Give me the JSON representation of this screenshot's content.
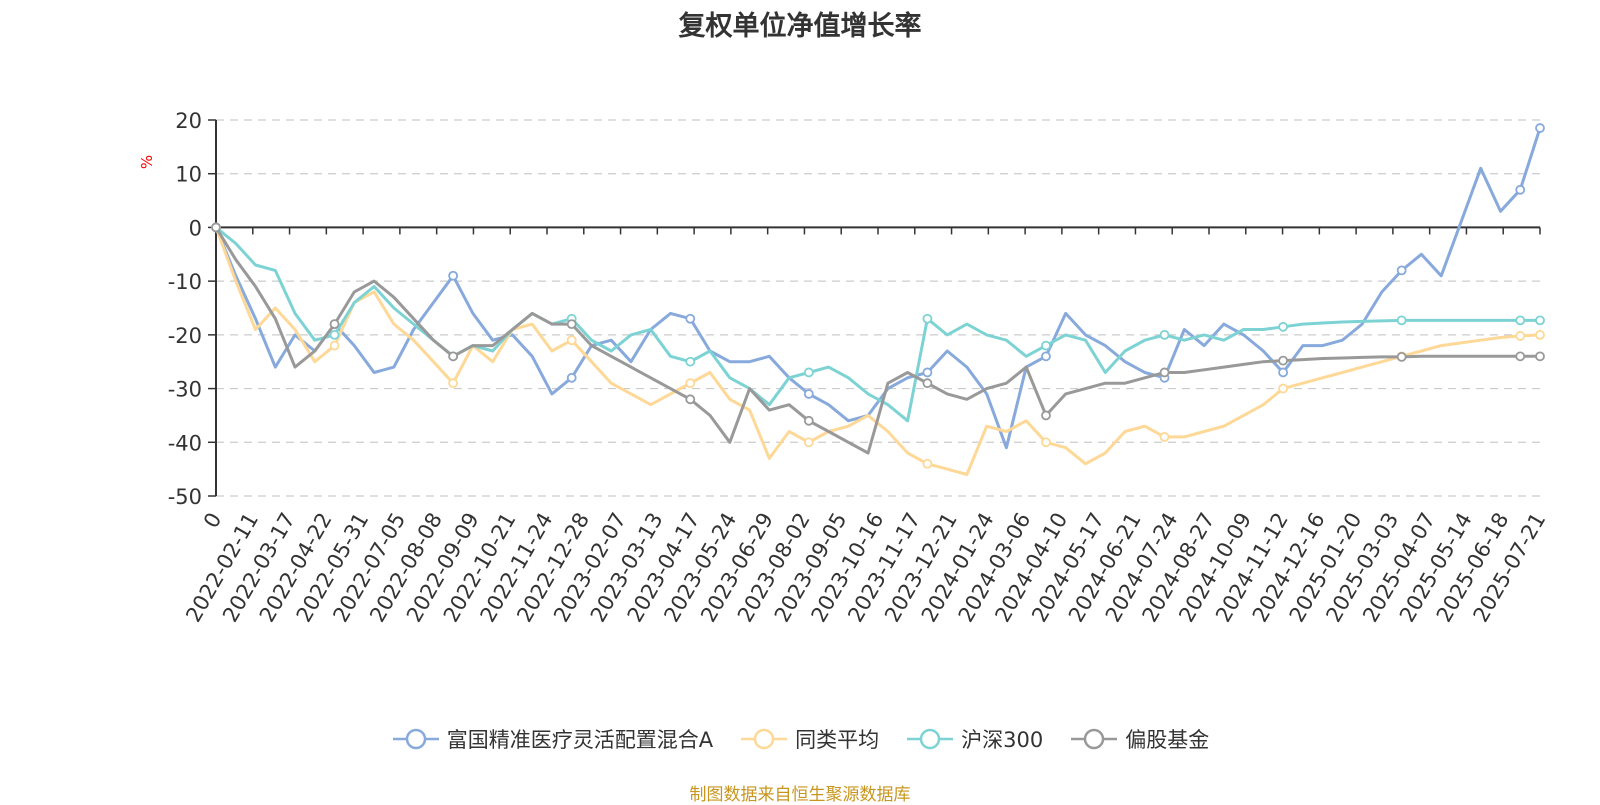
{
  "title": "复权单位净值增长率",
  "source_note": "制图数据来自恒生聚源数据库",
  "chart_data": {
    "type": "line",
    "title": "复权单位净值增长率",
    "ylabel": "%",
    "ylim": [
      -50,
      20
    ],
    "yticks": [
      20,
      10,
      0,
      -10,
      -20,
      -30,
      -40,
      -50
    ],
    "grid": true,
    "legend_position": "bottom",
    "x_tick_labels": [
      "0",
      "2022-02-11",
      "2022-03-17",
      "2022-04-22",
      "2022-05-31",
      "2022-07-05",
      "2022-08-08",
      "2022-09-09",
      "2022-10-21",
      "2022-11-24",
      "2022-12-28",
      "2023-02-07",
      "2023-03-13",
      "2023-04-17",
      "2023-05-24",
      "2023-06-29",
      "2023-08-02",
      "2023-09-05",
      "2023-10-16",
      "2023-11-17",
      "2023-12-21",
      "2024-01-24",
      "2024-03-06",
      "2024-04-10",
      "2024-05-17",
      "2024-06-21",
      "2024-07-24",
      "2024-08-27",
      "2024-10-09",
      "2024-11-12",
      "2024-12-16",
      "2025-01-20",
      "2025-03-03",
      "2025-04-07",
      "2025-05-14",
      "2025-06-18",
      "2025-07-21"
    ],
    "series": [
      {
        "name": "富国精准医疗灵活配置混合A",
        "color": "#87a9dc",
        "values": [
          0,
          -9,
          -17,
          -26,
          -20,
          -23,
          -18,
          -22,
          -27,
          -26,
          -19,
          -14,
          -9,
          -16,
          -21,
          -20,
          -24,
          -31,
          -28,
          -22,
          -21,
          -25,
          -19,
          -16,
          -17,
          -23,
          -25,
          -25,
          -24,
          -28,
          -31,
          -33,
          -36,
          -35,
          -30,
          -28,
          -27,
          -23,
          -26,
          -31,
          -41,
          -26,
          -24,
          -16,
          -20,
          -22,
          -25,
          -27,
          -28,
          -19,
          -22,
          -18,
          -20,
          -23,
          -27,
          -22,
          -22,
          -21,
          -18,
          -12,
          -8,
          -5,
          -9,
          1,
          11,
          3,
          7,
          18.5
        ]
      },
      {
        "name": "同类平均",
        "color": "#fdd897",
        "values": [
          0,
          -10,
          -19,
          -15,
          -19,
          -25,
          -22,
          -14,
          -12,
          -18,
          -21,
          -25,
          -29,
          -22,
          -25,
          -19,
          -18,
          -23,
          -21,
          -25,
          -29,
          -31,
          -33,
          -31,
          -29,
          -27,
          -32,
          -34,
          -43,
          -38,
          -40,
          -38,
          -37,
          -35,
          -38,
          -42,
          -44,
          -45,
          -46,
          -37,
          -38,
          -36,
          -40,
          -41,
          -44,
          -42,
          -38,
          -37,
          -39,
          -39,
          -38,
          -37,
          -35,
          -33,
          -30,
          -29,
          -28,
          -27,
          -26,
          -25,
          -24,
          -23,
          -22,
          -21.5,
          -21,
          -20.5,
          -20.2,
          -20
        ]
      },
      {
        "name": "沪深300",
        "color": "#7dd3d4",
        "values": [
          0,
          -3,
          -7,
          -8,
          -16,
          -21,
          -20,
          -14,
          -11,
          -15,
          -18,
          -21,
          -24,
          -22,
          -23,
          -19,
          -16,
          -18,
          -17,
          -21,
          -23,
          -20,
          -19,
          -24,
          -25,
          -23,
          -28,
          -30,
          -33,
          -28,
          -27,
          -26,
          -28,
          -31,
          -33,
          -36,
          -17,
          -20,
          -18,
          -20,
          -21,
          -24,
          -22,
          -20,
          -21,
          -27,
          -23,
          -21,
          -20,
          -21,
          -20,
          -21,
          -19,
          -19,
          -18.5,
          -18,
          -17.8,
          -17.6,
          -17.5,
          -17.4,
          -17.3,
          -17.3,
          -17.3,
          -17.3,
          -17.3,
          -17.3,
          -17.3,
          -17.3
        ]
      },
      {
        "name": "偏股基金",
        "color": "#999999",
        "values": [
          0,
          -6,
          -11,
          -17,
          -26,
          -23,
          -18,
          -12,
          -10,
          -13,
          -17,
          -21,
          -24,
          -22,
          -22,
          -19,
          -16,
          -18,
          -18,
          -22,
          -24,
          -26,
          -28,
          -30,
          -32,
          -35,
          -40,
          -30,
          -34,
          -33,
          -36,
          -38,
          -40,
          -42,
          -29,
          -27,
          -29,
          -31,
          -32,
          -30,
          -29,
          -26,
          -35,
          -31,
          -30,
          -29,
          -29,
          -28,
          -27,
          -27,
          -26.5,
          -26,
          -25.5,
          -25,
          -24.8,
          -24.6,
          -24.4,
          -24.3,
          -24.2,
          -24.1,
          -24.1,
          -24,
          -24,
          -24,
          -24,
          -24,
          -24,
          -24
        ]
      }
    ]
  },
  "legend": [
    {
      "label": "富国精准医疗灵活配置混合A",
      "color": "#87a9dc"
    },
    {
      "label": "同类平均",
      "color": "#fdd897"
    },
    {
      "label": "沪深300",
      "color": "#7dd3d4"
    },
    {
      "label": "偏股基金",
      "color": "#999999"
    }
  ],
  "axis_color": "#333333",
  "grid_color": "#cccccc",
  "unit_color": "#ff0000"
}
